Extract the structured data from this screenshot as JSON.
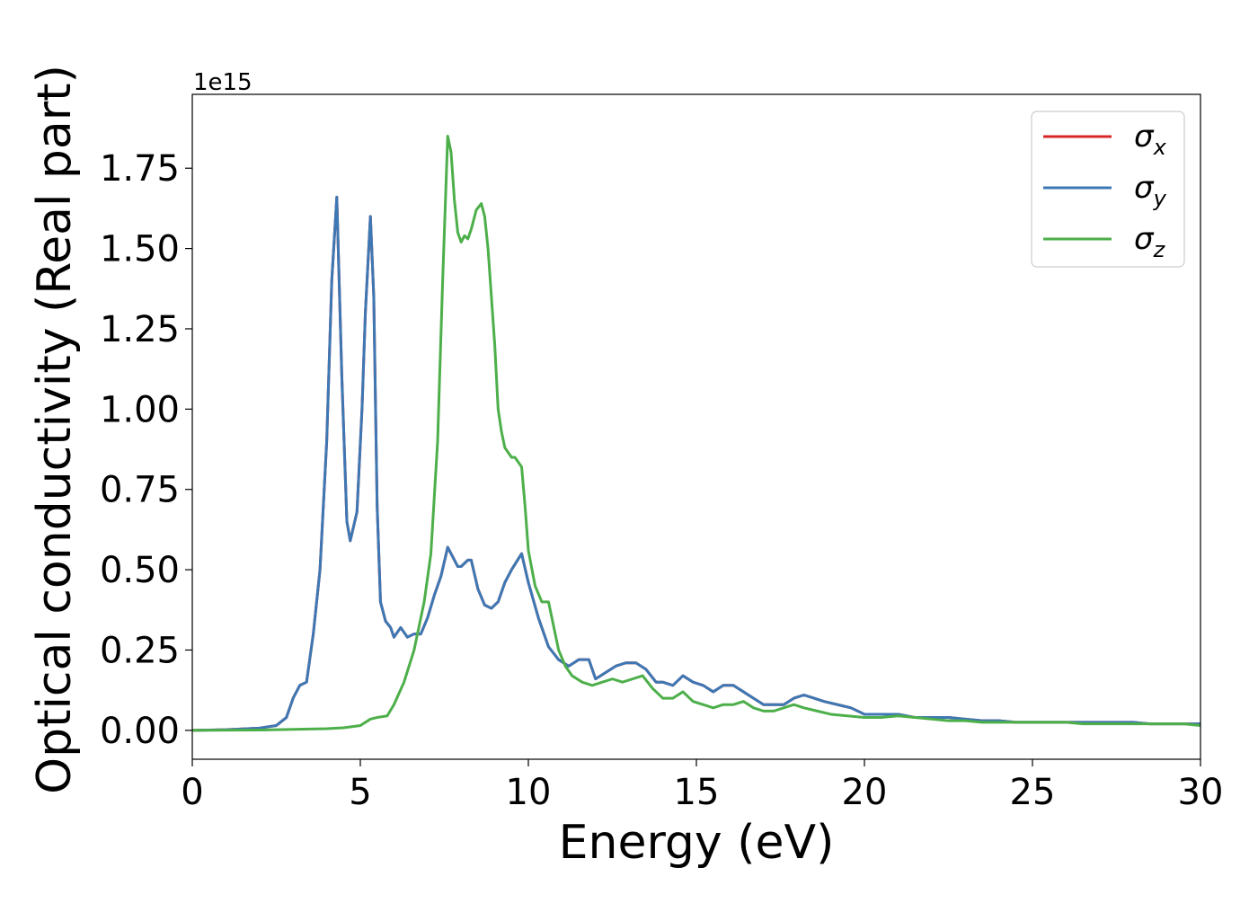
{
  "chart_data": {
    "type": "line",
    "title": "",
    "xlabel": "Energy (eV)",
    "ylabel": "Optical conductivity (Real part)",
    "y_offset_text": "1e15",
    "xlim": [
      0,
      30
    ],
    "ylim": [
      -0.09,
      1.98
    ],
    "y_scale_factor": 1000000000000000.0,
    "xticks": [
      0,
      5,
      10,
      15,
      20,
      25,
      30
    ],
    "xtick_labels": [
      "0",
      "5",
      "10",
      "15",
      "20",
      "25",
      "30"
    ],
    "yticks": [
      0.0,
      0.25,
      0.5,
      0.75,
      1.0,
      1.25,
      1.5,
      1.75
    ],
    "ytick_labels": [
      "0.00",
      "0.25",
      "0.50",
      "0.75",
      "1.00",
      "1.25",
      "1.50",
      "1.75"
    ],
    "grid": false,
    "legend_position": "top-right",
    "series": [
      {
        "name": "σx",
        "symbol": "σ",
        "subscript": "x",
        "color": "#d62728",
        "x": [
          0,
          1,
          2,
          2.5,
          2.8,
          3.0,
          3.2,
          3.4,
          3.6,
          3.8,
          4.0,
          4.15,
          4.3,
          4.45,
          4.6,
          4.7,
          4.9,
          5.05,
          5.15,
          5.3,
          5.4,
          5.5,
          5.6,
          5.75,
          5.9,
          6.0,
          6.2,
          6.4,
          6.6,
          6.8,
          7.0,
          7.2,
          7.4,
          7.6,
          7.7,
          7.9,
          8.0,
          8.2,
          8.3,
          8.5,
          8.7,
          8.9,
          9.1,
          9.3,
          9.5,
          9.8,
          10.0,
          10.3,
          10.6,
          10.9,
          11.2,
          11.5,
          11.8,
          12.0,
          12.3,
          12.6,
          12.9,
          13.2,
          13.5,
          13.8,
          14.0,
          14.3,
          14.6,
          14.9,
          15.2,
          15.5,
          15.8,
          16.1,
          16.4,
          16.7,
          17.0,
          17.3,
          17.6,
          17.9,
          18.2,
          18.5,
          18.8,
          19.2,
          19.6,
          20.0,
          20.5,
          21.0,
          21.5,
          22.0,
          22.5,
          23.0,
          23.5,
          24.0,
          24.5,
          25.0,
          25.5,
          26.0,
          26.5,
          27.0,
          27.5,
          28.0,
          28.5,
          29.0,
          29.5,
          30.0
        ],
        "values": [
          0,
          0.002,
          0.007,
          0.015,
          0.04,
          0.1,
          0.14,
          0.15,
          0.3,
          0.5,
          0.9,
          1.4,
          1.66,
          1.1,
          0.65,
          0.59,
          0.68,
          1.0,
          1.3,
          1.6,
          1.35,
          0.7,
          0.4,
          0.34,
          0.32,
          0.29,
          0.32,
          0.29,
          0.3,
          0.3,
          0.35,
          0.42,
          0.48,
          0.57,
          0.55,
          0.51,
          0.51,
          0.53,
          0.53,
          0.44,
          0.39,
          0.38,
          0.4,
          0.46,
          0.5,
          0.55,
          0.46,
          0.35,
          0.26,
          0.22,
          0.2,
          0.22,
          0.22,
          0.16,
          0.18,
          0.2,
          0.21,
          0.21,
          0.19,
          0.15,
          0.15,
          0.14,
          0.17,
          0.15,
          0.14,
          0.12,
          0.14,
          0.14,
          0.12,
          0.1,
          0.08,
          0.08,
          0.08,
          0.1,
          0.11,
          0.1,
          0.09,
          0.08,
          0.07,
          0.05,
          0.05,
          0.05,
          0.04,
          0.04,
          0.04,
          0.035,
          0.03,
          0.03,
          0.025,
          0.025,
          0.025,
          0.025,
          0.025,
          0.025,
          0.025,
          0.025,
          0.02,
          0.02,
          0.02,
          0.02
        ]
      },
      {
        "name": "σy",
        "symbol": "σ",
        "subscript": "y",
        "color": "#3d78b4",
        "x": [
          0,
          1,
          2,
          2.5,
          2.8,
          3.0,
          3.2,
          3.4,
          3.6,
          3.8,
          4.0,
          4.15,
          4.3,
          4.45,
          4.6,
          4.7,
          4.9,
          5.05,
          5.15,
          5.3,
          5.4,
          5.5,
          5.6,
          5.75,
          5.9,
          6.0,
          6.2,
          6.4,
          6.6,
          6.8,
          7.0,
          7.2,
          7.4,
          7.6,
          7.7,
          7.9,
          8.0,
          8.2,
          8.3,
          8.5,
          8.7,
          8.9,
          9.1,
          9.3,
          9.5,
          9.8,
          10.0,
          10.3,
          10.6,
          10.9,
          11.2,
          11.5,
          11.8,
          12.0,
          12.3,
          12.6,
          12.9,
          13.2,
          13.5,
          13.8,
          14.0,
          14.3,
          14.6,
          14.9,
          15.2,
          15.5,
          15.8,
          16.1,
          16.4,
          16.7,
          17.0,
          17.3,
          17.6,
          17.9,
          18.2,
          18.5,
          18.8,
          19.2,
          19.6,
          20.0,
          20.5,
          21.0,
          21.5,
          22.0,
          22.5,
          23.0,
          23.5,
          24.0,
          24.5,
          25.0,
          25.5,
          26.0,
          26.5,
          27.0,
          27.5,
          28.0,
          28.5,
          29.0,
          29.5,
          30.0
        ],
        "values": [
          0,
          0.002,
          0.007,
          0.015,
          0.04,
          0.1,
          0.14,
          0.15,
          0.3,
          0.5,
          0.9,
          1.4,
          1.66,
          1.1,
          0.65,
          0.59,
          0.68,
          1.0,
          1.3,
          1.6,
          1.35,
          0.7,
          0.4,
          0.34,
          0.32,
          0.29,
          0.32,
          0.29,
          0.3,
          0.3,
          0.35,
          0.42,
          0.48,
          0.57,
          0.55,
          0.51,
          0.51,
          0.53,
          0.53,
          0.44,
          0.39,
          0.38,
          0.4,
          0.46,
          0.5,
          0.55,
          0.46,
          0.35,
          0.26,
          0.22,
          0.2,
          0.22,
          0.22,
          0.16,
          0.18,
          0.2,
          0.21,
          0.21,
          0.19,
          0.15,
          0.15,
          0.14,
          0.17,
          0.15,
          0.14,
          0.12,
          0.14,
          0.14,
          0.12,
          0.1,
          0.08,
          0.08,
          0.08,
          0.1,
          0.11,
          0.1,
          0.09,
          0.08,
          0.07,
          0.05,
          0.05,
          0.05,
          0.04,
          0.04,
          0.04,
          0.035,
          0.03,
          0.03,
          0.025,
          0.025,
          0.025,
          0.025,
          0.025,
          0.025,
          0.025,
          0.025,
          0.02,
          0.02,
          0.02,
          0.02
        ]
      },
      {
        "name": "σz",
        "symbol": "σ",
        "subscript": "z",
        "color": "#4daf4a",
        "x": [
          0,
          2,
          3,
          4,
          4.5,
          5.0,
          5.3,
          5.5,
          5.8,
          6.0,
          6.3,
          6.6,
          6.9,
          7.1,
          7.3,
          7.45,
          7.6,
          7.7,
          7.8,
          7.9,
          8.0,
          8.1,
          8.2,
          8.3,
          8.45,
          8.6,
          8.7,
          8.8,
          8.9,
          9.0,
          9.1,
          9.2,
          9.3,
          9.5,
          9.6,
          9.8,
          9.9,
          10.0,
          10.2,
          10.4,
          10.6,
          10.7,
          10.9,
          11.1,
          11.3,
          11.6,
          11.9,
          12.2,
          12.5,
          12.8,
          13.1,
          13.4,
          13.7,
          14.0,
          14.3,
          14.6,
          14.9,
          15.2,
          15.5,
          15.8,
          16.1,
          16.4,
          16.7,
          17.0,
          17.3,
          17.6,
          17.9,
          18.2,
          18.6,
          19.0,
          19.5,
          20.0,
          20.5,
          21.0,
          21.5,
          22.0,
          22.5,
          23.0,
          23.5,
          24.0,
          24.5,
          25.0,
          25.5,
          26.0,
          26.5,
          27.0,
          27.5,
          28.0,
          28.5,
          29.0,
          29.5,
          30.0
        ],
        "values": [
          0,
          0.001,
          0.003,
          0.005,
          0.008,
          0.015,
          0.035,
          0.04,
          0.045,
          0.08,
          0.15,
          0.25,
          0.4,
          0.55,
          0.9,
          1.4,
          1.85,
          1.8,
          1.65,
          1.55,
          1.52,
          1.54,
          1.53,
          1.56,
          1.62,
          1.64,
          1.6,
          1.5,
          1.35,
          1.2,
          1.0,
          0.93,
          0.88,
          0.85,
          0.85,
          0.82,
          0.7,
          0.56,
          0.45,
          0.4,
          0.4,
          0.35,
          0.25,
          0.2,
          0.17,
          0.15,
          0.14,
          0.15,
          0.16,
          0.15,
          0.16,
          0.17,
          0.13,
          0.1,
          0.1,
          0.12,
          0.09,
          0.08,
          0.07,
          0.08,
          0.08,
          0.09,
          0.07,
          0.06,
          0.06,
          0.07,
          0.08,
          0.07,
          0.06,
          0.05,
          0.045,
          0.04,
          0.04,
          0.045,
          0.04,
          0.035,
          0.03,
          0.03,
          0.025,
          0.025,
          0.025,
          0.025,
          0.025,
          0.025,
          0.02,
          0.02,
          0.02,
          0.02,
          0.02,
          0.02,
          0.02,
          0.015
        ]
      }
    ]
  }
}
